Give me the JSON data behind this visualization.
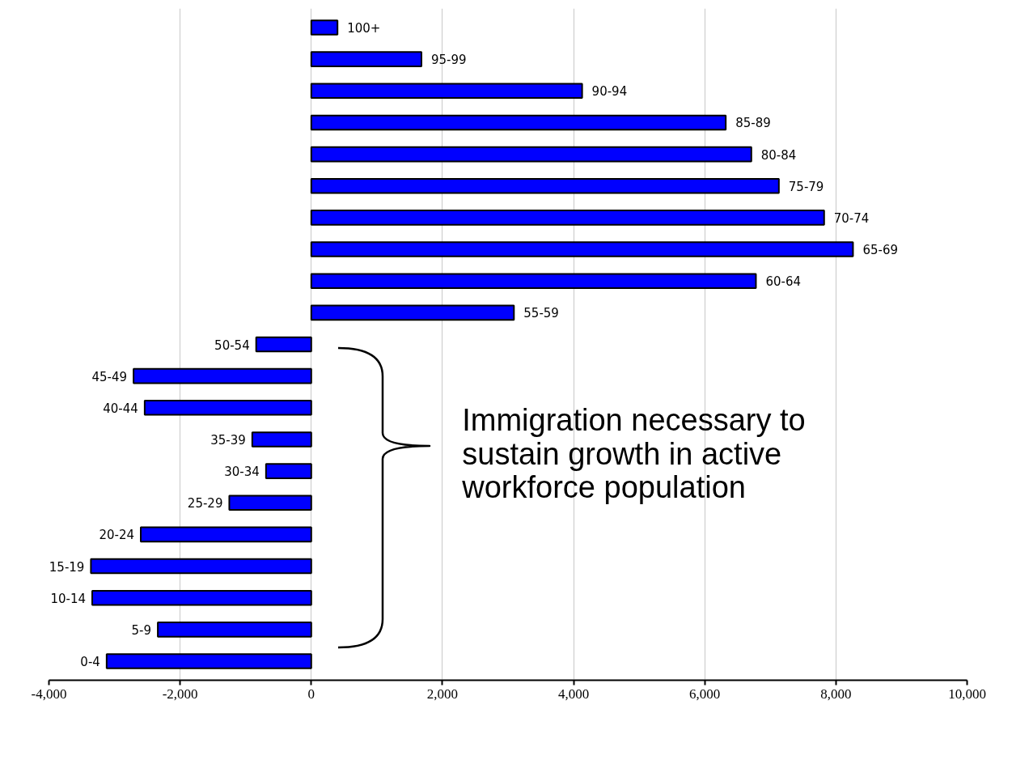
{
  "chart_data": {
    "type": "bar",
    "orientation": "horizontal",
    "categories": [
      "100+",
      "95-99",
      "90-94",
      "85-89",
      "80-84",
      "75-79",
      "70-74",
      "65-69",
      "60-64",
      "55-59",
      "50-54",
      "45-49",
      "40-44",
      "35-39",
      "30-34",
      "25-29",
      "20-24",
      "15-19",
      "10-14",
      "5-9",
      "0-4"
    ],
    "values": [
      400,
      1680,
      4130,
      6320,
      6710,
      7130,
      7820,
      8260,
      6780,
      3090,
      -840,
      -2710,
      -2540,
      -900,
      -690,
      -1250,
      -2600,
      -3360,
      -3340,
      -2340,
      -3120
    ],
    "color": "#0000ff",
    "xlim": [
      -4000,
      10000
    ],
    "xticks": [
      {
        "value": -4000,
        "label": "-4,000"
      },
      {
        "value": -2000,
        "label": "-2,000"
      },
      0,
      {
        "value": 2000,
        "label": "2,000"
      },
      {
        "value": 4000,
        "label": "4,000"
      },
      {
        "value": 6000,
        "label": "6,000"
      },
      {
        "value": 8000,
        "label": "8,000"
      },
      {
        "value": 10000,
        "label": "10,000"
      }
    ],
    "grid": "x",
    "tick_labels": "x",
    "annotations": [
      "Immigration necessary to sustain growth in active workforce population"
    ]
  }
}
